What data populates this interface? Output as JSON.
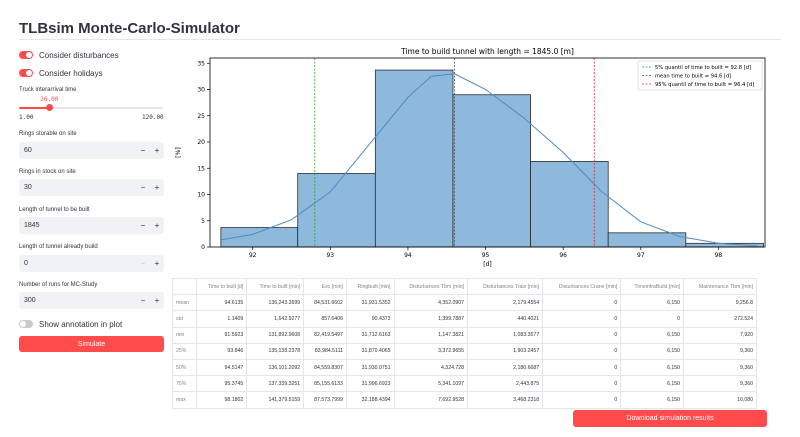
{
  "app": {
    "title": "TLBsim Monte-Carlo-Simulator"
  },
  "sidebar": {
    "consider_disturbances": {
      "label": "Consider disturbances",
      "on": true
    },
    "consider_holidays": {
      "label": "Consider holidays",
      "on": true
    },
    "truck_interarrival": {
      "label": "Truck interarrival time",
      "value": "26.00",
      "value_num": 26,
      "min": "1.00",
      "max": "120.00",
      "min_num": 1,
      "max_num": 120
    },
    "rings_storable": {
      "label": "Rings storable on site",
      "value": "60"
    },
    "rings_in_stock": {
      "label": "Rings in stock on site",
      "value": "30"
    },
    "tunnel_length": {
      "label": "Length of tunnel to be built",
      "value": "1845"
    },
    "tunnel_built": {
      "label": "Length of tunnel already build",
      "value": "0"
    },
    "mc_runs": {
      "label": "Number of runs for MC-Study",
      "value": "300"
    },
    "show_annotation": {
      "label": "Show annotation in plot",
      "on": false
    },
    "simulate_label": "Simulate",
    "minus": "−",
    "plus": "+"
  },
  "chart_data": {
    "type": "bar",
    "title": "Time to build tunnel with length = 1845.0 [m]",
    "xlabel": "[d]",
    "ylabel": "[%]",
    "xlim": [
      91.45,
      98.6
    ],
    "ylim": [
      0,
      36
    ],
    "xticks": [
      92,
      93,
      94,
      95,
      96,
      97,
      98
    ],
    "yticks": [
      0,
      5,
      10,
      15,
      20,
      25,
      30,
      35
    ],
    "bins": [
      {
        "x0": 91.59,
        "x1": 92.58,
        "value": 3.7
      },
      {
        "x0": 92.58,
        "x1": 93.58,
        "value": 14.0
      },
      {
        "x0": 93.58,
        "x1": 94.58,
        "value": 33.7
      },
      {
        "x0": 94.58,
        "x1": 95.58,
        "value": 29.0
      },
      {
        "x0": 95.58,
        "x1": 96.58,
        "value": 16.3
      },
      {
        "x0": 96.58,
        "x1": 97.58,
        "value": 2.7
      },
      {
        "x0": 97.58,
        "x1": 98.58,
        "value": 0.7
      }
    ],
    "kde": [
      [
        91.6,
        1.4
      ],
      [
        92.0,
        2.4
      ],
      [
        92.5,
        5.2
      ],
      [
        93.0,
        10.5
      ],
      [
        93.5,
        19.5
      ],
      [
        94.0,
        28.5
      ],
      [
        94.3,
        32.5
      ],
      [
        94.6,
        33.0
      ],
      [
        95.0,
        30.0
      ],
      [
        95.5,
        24.5
      ],
      [
        96.0,
        18.0
      ],
      [
        96.5,
        10.5
      ],
      [
        97.0,
        4.8
      ],
      [
        97.5,
        2.0
      ],
      [
        98.0,
        0.7
      ],
      [
        98.5,
        0.2
      ]
    ],
    "vlines": [
      {
        "x": 92.8,
        "label": "5% quantil of time to built = 92.8 [d]",
        "color": "#2ca02c"
      },
      {
        "x": 94.6,
        "label": "mean time to built = 94.6 [d]",
        "color": "#555555"
      },
      {
        "x": 96.4,
        "label": "95% quantil of time to built = 96.4 [d]",
        "color": "#d62728"
      }
    ],
    "bar_color": "#8eb9dc",
    "kde_color": "#4f8cbf",
    "legend_position": "top-right"
  },
  "table": {
    "headers": [
      "",
      "Time to built [d]",
      "Time to built [min]",
      "Exc [min]",
      "Ringbuilt [min]",
      "Disturbances Tbm [min]",
      "Disturbances Train [min]",
      "Disturbances Crane [min]",
      "TimeinfraBuild [min]",
      "Maintenance Tbm [min]"
    ],
    "rows": [
      [
        "mean",
        "94.6135",
        "136,243.3699",
        "84,531.6602",
        "31,931.5352",
        "4,352.0907",
        "2,179.4554",
        "0",
        "6,150",
        "9,256.8"
      ],
      [
        "std",
        "1.1409",
        "1,642.9277",
        "857.6406",
        "90.4373",
        "1,399.7887",
        "440.4021",
        "0",
        "0",
        "272.524"
      ],
      [
        "min",
        "91.5923",
        "131,892.9608",
        "82,419.5497",
        "31,712.6163",
        "1,147.3821",
        "1,083.3577",
        "0",
        "6,150",
        "7,920"
      ],
      [
        "25%",
        "93.846",
        "135,138.2378",
        "83,984.5111",
        "31,870.4065",
        "3,372.9655",
        "1,903.2457",
        "0",
        "6,150",
        "9,360"
      ],
      [
        "50%",
        "94.5147",
        "136,101.2092",
        "84,559.8307",
        "31,930.0751",
        "4,324.728",
        "2,180.6687",
        "0",
        "6,150",
        "9,360"
      ],
      [
        "75%",
        "95.3745",
        "137,339.3251",
        "85,155.6133",
        "31,996.6923",
        "5,341.1097",
        "2,443.875",
        "0",
        "6,150",
        "9,360"
      ],
      [
        "max",
        "98.1802",
        "141,379.5159",
        "87,573.7999",
        "32,188.4394",
        "7,692.9528",
        "3,468.2318",
        "0",
        "6,150",
        "10,080"
      ]
    ]
  },
  "download_label": "Download simulation results"
}
